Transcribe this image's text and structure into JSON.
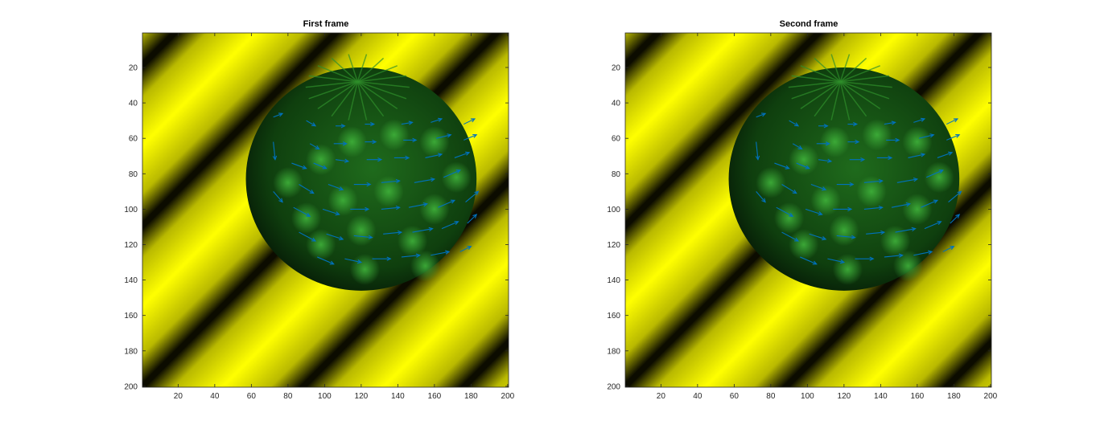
{
  "chart_data": [
    {
      "type": "heatmap",
      "title": "First frame",
      "xlim": [
        0.5,
        200.5
      ],
      "ylim": [
        0.5,
        200.5
      ],
      "y_reversed": true,
      "xticks": [
        20,
        40,
        60,
        80,
        100,
        120,
        140,
        160,
        180,
        200
      ],
      "yticks": [
        20,
        40,
        60,
        80,
        100,
        120,
        140,
        160,
        180,
        200
      ],
      "image": {
        "background": "diagonal yellow/black sinusoidal stripes",
        "background_colors": [
          "#ffff00",
          "#000000"
        ],
        "sphere": {
          "center": [
            120,
            83
          ],
          "radius": 63,
          "color": "#2e9a2a"
        }
      },
      "vectors": {
        "color": "#0072bd",
        "arrows": [
          [
            72,
            48,
            5,
            -2
          ],
          [
            90,
            50,
            5,
            3
          ],
          [
            106,
            53,
            5,
            0
          ],
          [
            122,
            52,
            5,
            0
          ],
          [
            142,
            52,
            6,
            -1
          ],
          [
            158,
            51,
            6,
            -2
          ],
          [
            176,
            52,
            6,
            -3
          ],
          [
            72,
            62,
            1,
            10
          ],
          [
            92,
            63,
            5,
            3
          ],
          [
            105,
            63,
            7,
            0
          ],
          [
            122,
            62,
            6,
            0
          ],
          [
            143,
            61,
            7,
            0
          ],
          [
            161,
            60,
            8,
            -2
          ],
          [
            176,
            61,
            7,
            -3
          ],
          [
            82,
            74,
            8,
            3
          ],
          [
            94,
            74,
            7,
            3
          ],
          [
            106,
            72,
            7,
            1
          ],
          [
            123,
            72,
            8,
            0
          ],
          [
            138,
            71,
            8,
            0
          ],
          [
            155,
            71,
            9,
            -2
          ],
          [
            171,
            71,
            8,
            -3
          ],
          [
            72,
            90,
            5,
            6
          ],
          [
            86,
            86,
            8,
            5
          ],
          [
            102,
            86,
            8,
            3
          ],
          [
            116,
            86,
            9,
            0
          ],
          [
            131,
            85,
            10,
            -1
          ],
          [
            149,
            85,
            11,
            -2
          ],
          [
            165,
            82,
            9,
            -4
          ],
          [
            83,
            99,
            9,
            5
          ],
          [
            99,
            100,
            9,
            3
          ],
          [
            114,
            100,
            10,
            0
          ],
          [
            131,
            100,
            10,
            -1
          ],
          [
            146,
            99,
            10,
            -2
          ],
          [
            162,
            99,
            9,
            -4
          ],
          [
            177,
            96,
            7,
            -6
          ],
          [
            86,
            113,
            9,
            5
          ],
          [
            101,
            114,
            9,
            3
          ],
          [
            116,
            115,
            10,
            1
          ],
          [
            132,
            114,
            10,
            -1
          ],
          [
            148,
            113,
            11,
            -2
          ],
          [
            164,
            111,
            9,
            -4
          ],
          [
            178,
            108,
            5,
            -5
          ],
          [
            96,
            127,
            9,
            4
          ],
          [
            111,
            128,
            9,
            2
          ],
          [
            126,
            128,
            10,
            0
          ],
          [
            142,
            127,
            10,
            -1
          ],
          [
            158,
            126,
            10,
            -2
          ],
          [
            174,
            124,
            6,
            -3
          ]
        ]
      }
    },
    {
      "type": "heatmap",
      "title": "Second frame",
      "xlim": [
        0.5,
        200.5
      ],
      "ylim": [
        0.5,
        200.5
      ],
      "y_reversed": true,
      "xticks": [
        20,
        40,
        60,
        80,
        100,
        120,
        140,
        160,
        180,
        200
      ],
      "yticks": [
        20,
        40,
        60,
        80,
        100,
        120,
        140,
        160,
        180,
        200
      ],
      "image": {
        "background": "diagonal yellow/black sinusoidal stripes",
        "background_colors": [
          "#ffff00",
          "#000000"
        ],
        "sphere": {
          "center": [
            120,
            83
          ],
          "radius": 63,
          "color": "#2e9a2a"
        }
      },
      "vectors": {
        "color": "#0072bd",
        "arrows": [
          [
            72,
            48,
            5,
            -2
          ],
          [
            90,
            50,
            5,
            3
          ],
          [
            106,
            53,
            5,
            0
          ],
          [
            122,
            52,
            5,
            0
          ],
          [
            142,
            52,
            6,
            -1
          ],
          [
            158,
            51,
            6,
            -2
          ],
          [
            176,
            52,
            6,
            -3
          ],
          [
            72,
            62,
            1,
            10
          ],
          [
            92,
            63,
            5,
            3
          ],
          [
            105,
            63,
            7,
            0
          ],
          [
            122,
            62,
            6,
            0
          ],
          [
            143,
            61,
            7,
            0
          ],
          [
            161,
            60,
            8,
            -2
          ],
          [
            176,
            61,
            7,
            -3
          ],
          [
            82,
            74,
            8,
            3
          ],
          [
            94,
            74,
            7,
            3
          ],
          [
            106,
            72,
            7,
            1
          ],
          [
            123,
            72,
            8,
            0
          ],
          [
            138,
            71,
            8,
            0
          ],
          [
            155,
            71,
            9,
            -2
          ],
          [
            171,
            71,
            8,
            -3
          ],
          [
            72,
            90,
            5,
            6
          ],
          [
            86,
            86,
            8,
            5
          ],
          [
            102,
            86,
            8,
            3
          ],
          [
            116,
            86,
            9,
            0
          ],
          [
            131,
            85,
            10,
            -1
          ],
          [
            149,
            85,
            11,
            -2
          ],
          [
            165,
            82,
            9,
            -4
          ],
          [
            83,
            99,
            9,
            5
          ],
          [
            99,
            100,
            9,
            3
          ],
          [
            114,
            100,
            10,
            0
          ],
          [
            131,
            100,
            10,
            -1
          ],
          [
            146,
            99,
            10,
            -2
          ],
          [
            162,
            99,
            9,
            -4
          ],
          [
            177,
            96,
            7,
            -6
          ],
          [
            86,
            113,
            9,
            5
          ],
          [
            101,
            114,
            9,
            3
          ],
          [
            116,
            115,
            10,
            1
          ],
          [
            132,
            114,
            10,
            -1
          ],
          [
            148,
            113,
            11,
            -2
          ],
          [
            164,
            111,
            9,
            -4
          ],
          [
            178,
            108,
            5,
            -5
          ],
          [
            96,
            127,
            9,
            4
          ],
          [
            111,
            128,
            9,
            2
          ],
          [
            126,
            128,
            10,
            0
          ],
          [
            142,
            127,
            10,
            -1
          ],
          [
            158,
            126,
            10,
            -2
          ],
          [
            174,
            124,
            6,
            -3
          ]
        ]
      }
    }
  ]
}
